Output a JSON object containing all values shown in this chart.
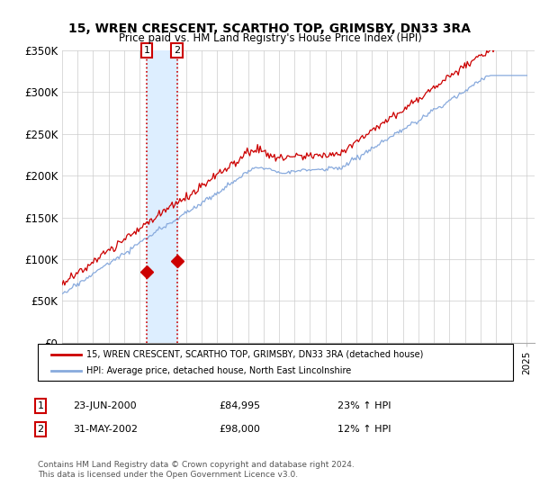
{
  "title": "15, WREN CRESCENT, SCARTHO TOP, GRIMSBY, DN33 3RA",
  "subtitle": "Price paid vs. HM Land Registry's House Price Index (HPI)",
  "ylim": [
    0,
    350000
  ],
  "yticks": [
    0,
    50000,
    100000,
    150000,
    200000,
    250000,
    300000,
    350000
  ],
  "ytick_labels": [
    "£0",
    "£50K",
    "£100K",
    "£150K",
    "£200K",
    "£250K",
    "£300K",
    "£350K"
  ],
  "xlim_start": 1995,
  "xlim_end": 2025.5,
  "sale1_date": 2000.47,
  "sale1_price": 84995,
  "sale2_date": 2002.41,
  "sale2_price": 98000,
  "line_prop_color": "#cc0000",
  "line_hpi_color": "#88aadd",
  "vline_color": "#cc0000",
  "span_color": "#ddeeff",
  "legend1_text": "15, WREN CRESCENT, SCARTHO TOP, GRIMSBY, DN33 3RA (detached house)",
  "legend2_text": "HPI: Average price, detached house, North East Lincolnshire",
  "footnote": "Contains HM Land Registry data © Crown copyright and database right 2024.\nThis data is licensed under the Open Government Licence v3.0.",
  "background_color": "#ffffff",
  "grid_color": "#cccccc"
}
